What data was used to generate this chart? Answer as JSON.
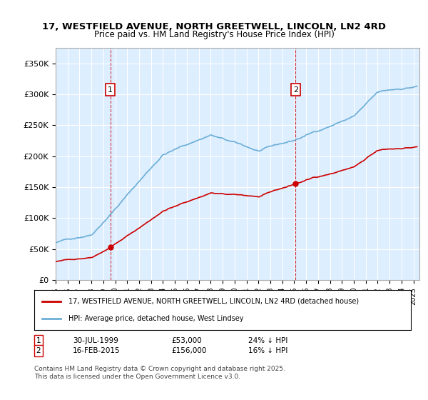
{
  "title_line1": "17, WESTFIELD AVENUE, NORTH GREETWELL, LINCOLN, LN2 4RD",
  "title_line2": "Price paid vs. HM Land Registry's House Price Index (HPI)",
  "xlim_start": 1995.0,
  "xlim_end": 2025.5,
  "ylim_min": 0,
  "ylim_max": 375000,
  "yticks": [
    0,
    50000,
    100000,
    150000,
    200000,
    250000,
    300000,
    350000
  ],
  "ytick_labels": [
    "£0",
    "£50K",
    "£100K",
    "£150K",
    "£200K",
    "£250K",
    "£300K",
    "£350K"
  ],
  "sale1_x": 1999.58,
  "sale1_y": 53000,
  "sale1_label": "1",
  "sale1_date": "30-JUL-1999",
  "sale1_price": "£53,000",
  "sale1_hpi": "24% ↓ HPI",
  "sale2_x": 2015.12,
  "sale2_y": 156000,
  "sale2_label": "2",
  "sale2_date": "16-FEB-2015",
  "sale2_price": "£156,000",
  "sale2_hpi": "16% ↓ HPI",
  "hpi_color": "#6baed6",
  "sale_color": "#cc0000",
  "bg_color": "#ddeeff",
  "legend_label1": "17, WESTFIELD AVENUE, NORTH GREETWELL, LINCOLN, LN2 4RD (detached house)",
  "legend_label2": "HPI: Average price, detached house, West Lindsey",
  "footnote": "Contains HM Land Registry data © Crown copyright and database right 2025.\nThis data is licensed under the Open Government Licence v3.0."
}
